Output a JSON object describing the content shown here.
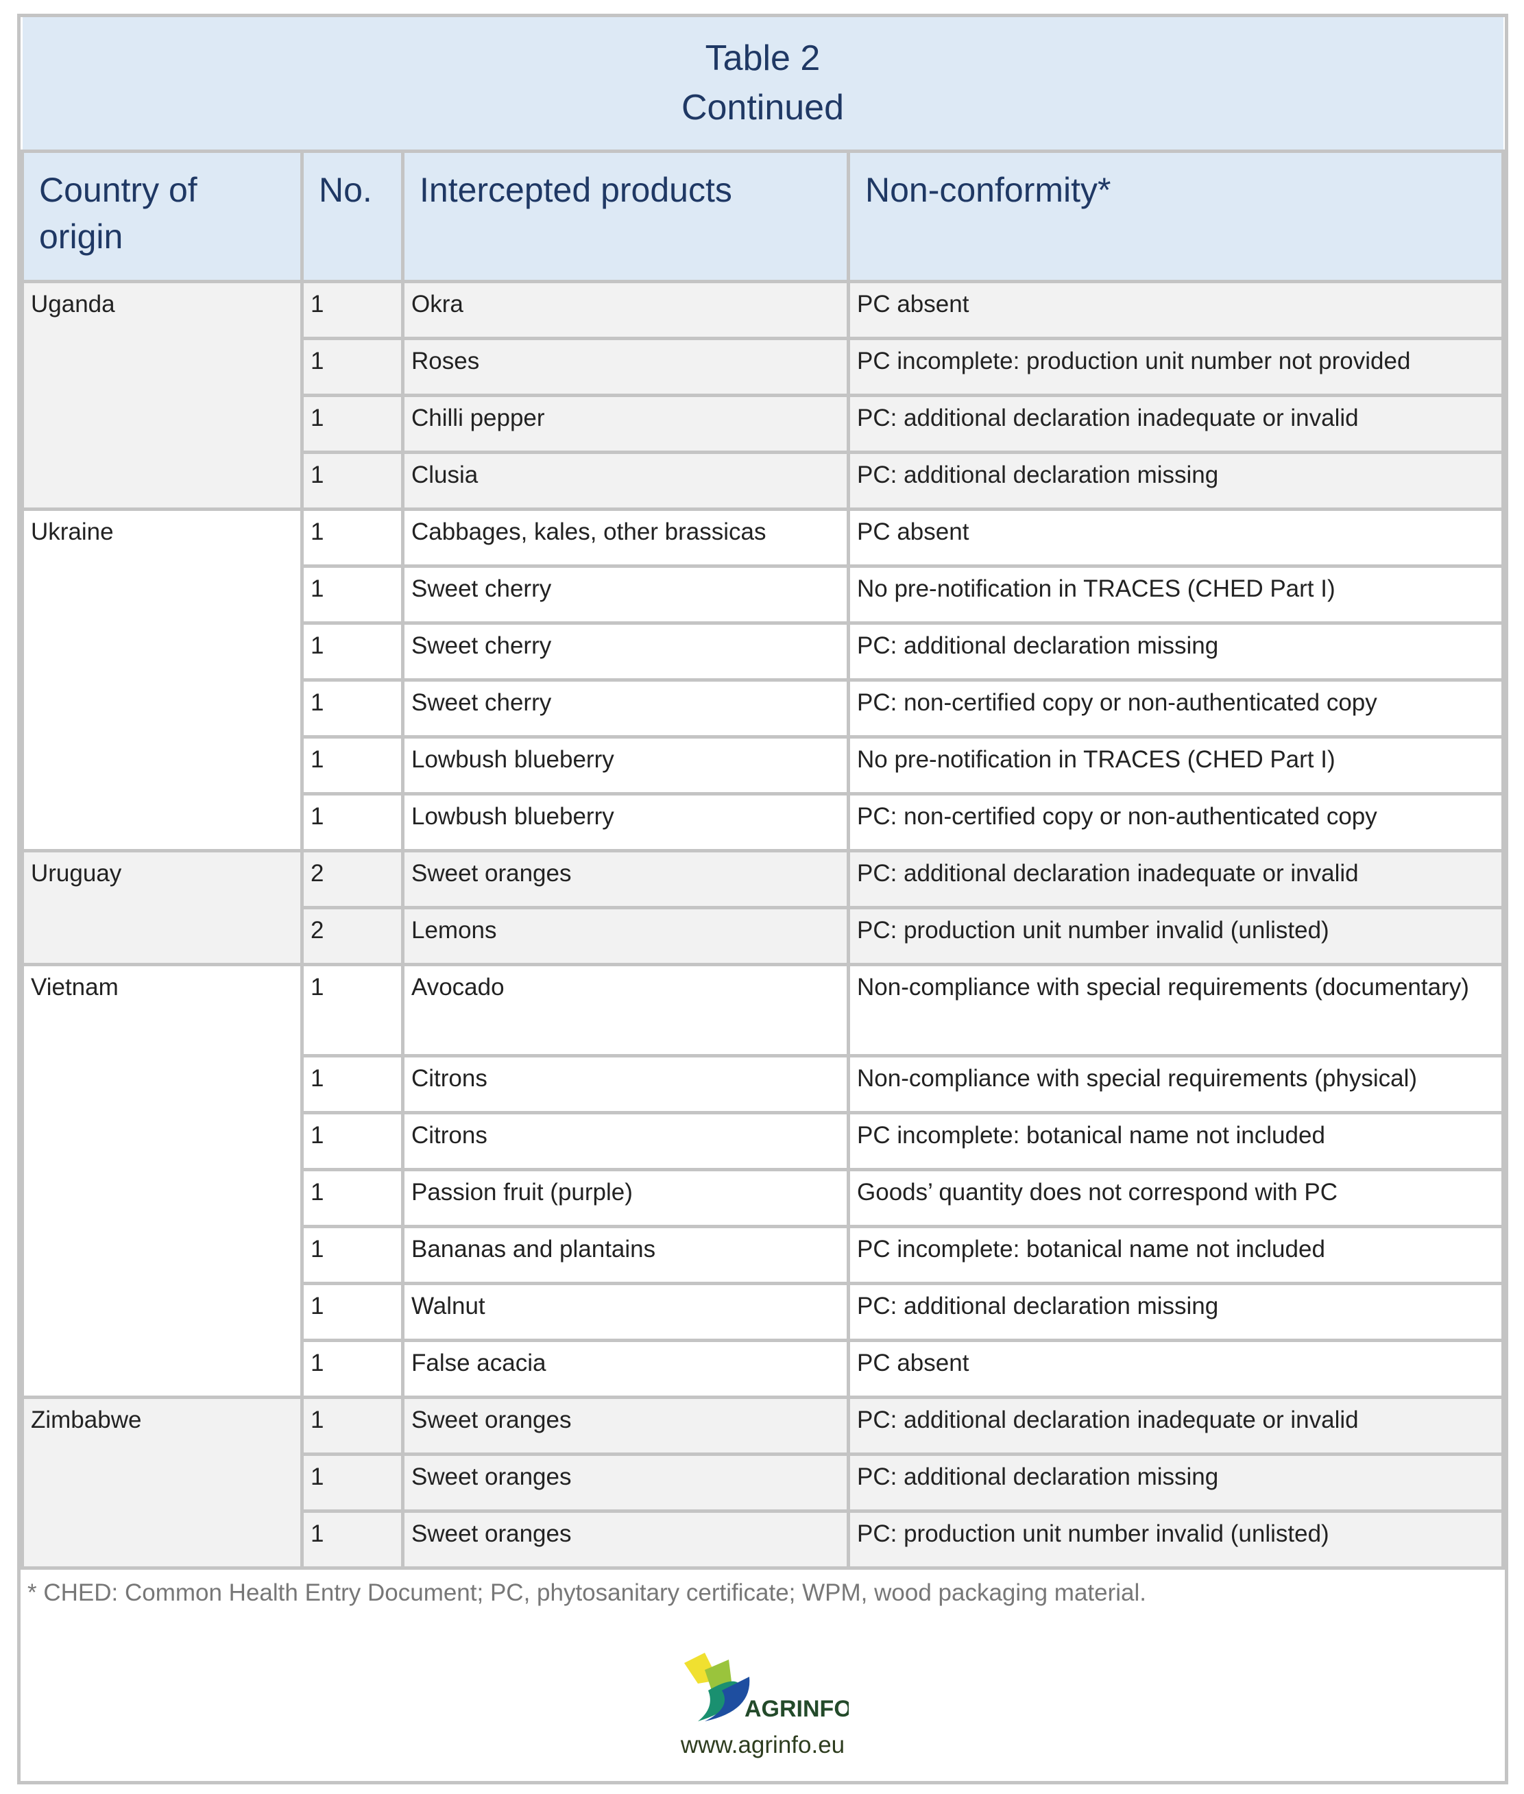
{
  "title": {
    "line1": "Table 2",
    "line2": "Continued"
  },
  "headers": [
    "Country of origin",
    "No.",
    "Intercepted products",
    "Non-conformity*"
  ],
  "groups": [
    {
      "country": "Uganda",
      "rows": [
        [
          "1",
          "Okra",
          "PC absent"
        ],
        [
          "1",
          "Roses",
          "PC incomplete: production unit number not provided"
        ],
        [
          "1",
          "Chilli pepper",
          "PC: additional declaration inadequate or invalid"
        ],
        [
          "1",
          "Clusia",
          "PC: additional declaration missing"
        ]
      ]
    },
    {
      "country": "Ukraine",
      "rows": [
        [
          "1",
          "Cabbages, kales, other brassicas",
          "PC absent"
        ],
        [
          "1",
          "Sweet cherry",
          "No pre-notification in TRACES (CHED Part I)"
        ],
        [
          "1",
          "Sweet cherry",
          "PC: additional declaration missing"
        ],
        [
          "1",
          "Sweet cherry",
          "PC: non-certified copy or non-authenticated copy"
        ],
        [
          "1",
          "Lowbush blueberry",
          "No pre-notification in TRACES (CHED Part I)"
        ],
        [
          "1",
          "Lowbush blueberry",
          "PC: non-certified copy or non-authenticated copy"
        ]
      ]
    },
    {
      "country": "Uruguay",
      "rows": [
        [
          "2",
          "Sweet oranges",
          "PC: additional declaration inadequate or invalid"
        ],
        [
          "2",
          "Lemons",
          "PC: production unit number invalid (unlisted)"
        ]
      ]
    },
    {
      "country": "Vietnam",
      "rows": [
        [
          "1",
          "Avocado",
          "Non-compliance with special requirements (documentary)"
        ],
        [
          "1",
          "Citrons",
          "Non-compliance with special requirements (physical)"
        ],
        [
          "1",
          "Citrons",
          "PC incomplete: botanical name not included"
        ],
        [
          "1",
          "Passion fruit (purple)",
          "Goods’ quantity does not correspond with PC"
        ],
        [
          "1",
          "Bananas and plantains",
          "PC incomplete: botanical name not included"
        ],
        [
          "1",
          "Walnut",
          "PC: additional declaration missing"
        ],
        [
          "1",
          "False acacia",
          "PC absent"
        ]
      ]
    },
    {
      "country": "Zimbabwe",
      "rows": [
        [
          "1",
          "Sweet oranges",
          "PC: additional declaration inadequate or invalid"
        ],
        [
          "1",
          "Sweet oranges",
          "PC: additional declaration missing"
        ],
        [
          "1",
          "Sweet oranges",
          "PC: production unit number invalid (unlisted)"
        ]
      ]
    }
  ],
  "footnote": "* CHED: Common Health Entry Document; PC, phytosanitary certificate; WPM, wood packaging material.",
  "logo": {
    "text": "AGRINFO",
    "url": "www.agrinfo.eu"
  },
  "colors": {
    "header_bg": "#dde9f5",
    "header_text": "#1f3864",
    "shaded_row": "#f2f2f2",
    "border": "#c4c4c4"
  }
}
